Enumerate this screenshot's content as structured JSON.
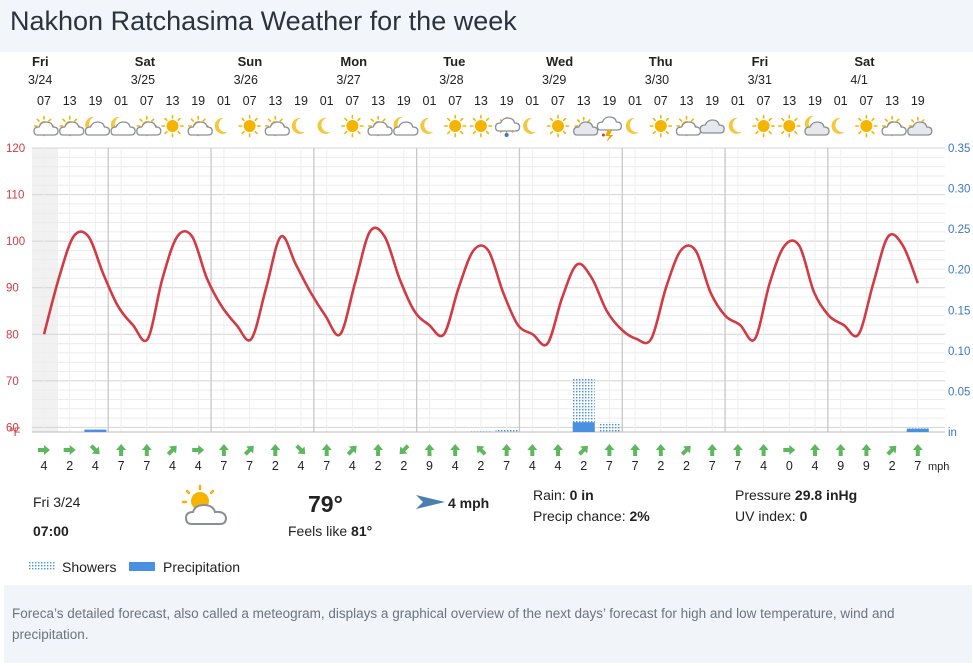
{
  "page": {
    "title": "Nakhon Ratchasima Weather for the week"
  },
  "days": [
    {
      "name": "Fri",
      "date": "3/24"
    },
    {
      "name": "Sat",
      "date": "3/25"
    },
    {
      "name": "Sun",
      "date": "3/26"
    },
    {
      "name": "Mon",
      "date": "3/27"
    },
    {
      "name": "Tue",
      "date": "3/28"
    },
    {
      "name": "Wed",
      "date": "3/29"
    },
    {
      "name": "Thu",
      "date": "3/30"
    },
    {
      "name": "Fri",
      "date": "3/31"
    },
    {
      "name": "Sat",
      "date": "4/1"
    }
  ],
  "hours": [
    "07",
    "13",
    "19",
    "01",
    "07",
    "13",
    "19",
    "01",
    "07",
    "13",
    "19",
    "01",
    "07",
    "13",
    "19",
    "01",
    "07",
    "13",
    "19",
    "01",
    "07",
    "13",
    "19",
    "01",
    "07",
    "13",
    "19",
    "01",
    "07",
    "13",
    "19",
    "01",
    "07",
    "13",
    "19"
  ],
  "icons": [
    "partly-cloudy-sun-icon",
    "partly-cloudy-sun-icon",
    "partly-cloudy-moon-icon",
    "partly-cloudy-moon-icon",
    "partly-cloudy-sun-icon",
    "sun-icon",
    "partly-cloudy-sun-icon",
    "moon-icon",
    "sun-icon",
    "partly-cloudy-sun-icon",
    "moon-icon",
    "moon-icon",
    "sun-icon",
    "partly-cloudy-sun-icon",
    "partly-cloudy-moon-icon",
    "moon-icon",
    "sun-icon",
    "sun-icon",
    "rain-cloud-icon",
    "moon-icon",
    "sun-icon",
    "cloudy-sun-icon",
    "thunderstorm-icon",
    "moon-icon",
    "sun-icon",
    "partly-cloudy-sun-icon",
    "cloudy-icon",
    "moon-icon",
    "sun-icon",
    "sun-icon",
    "cloudy-moon-icon",
    "moon-icon",
    "sun-icon",
    "partly-cloudy-sun-icon",
    "cloudy-sun-icon"
  ],
  "wind": {
    "unit": "mph",
    "speeds": [
      4,
      2,
      4,
      7,
      7,
      4,
      4,
      7,
      7,
      2,
      4,
      7,
      4,
      2,
      2,
      9,
      4,
      2,
      7,
      4,
      4,
      2,
      7,
      7,
      2,
      2,
      7,
      7,
      4,
      0,
      4,
      9,
      9,
      2,
      7
    ],
    "directions": [
      "E",
      "E",
      "SE",
      "N",
      "N",
      "NE",
      "E",
      "N",
      "NE",
      "N",
      "SE",
      "N",
      "NE",
      "N",
      "SW",
      "N",
      "N",
      "NW",
      "N",
      "N",
      "N",
      "NE",
      "N",
      "N",
      "N",
      "NE",
      "N",
      "N",
      "N",
      "E",
      "N",
      "N",
      "N",
      "NE",
      "N"
    ]
  },
  "current": {
    "day_date": "Fri 3/24",
    "time": "07:00",
    "temperature": "79°",
    "feels_like_label": "Feels like",
    "feels_like_value": "81°",
    "wind": "4 mph",
    "rain_label": "Rain:",
    "rain_value": "0 in",
    "precip_chance_label": "Precip chance:",
    "precip_chance_value": "2%",
    "pressure_label": "Pressure",
    "pressure_value": "29.8 inHg",
    "uv_label": "UV index:",
    "uv_value": "0",
    "icon": "partly-cloudy-sun-icon"
  },
  "legend": {
    "showers": "Showers",
    "precipitation": "Precipitation"
  },
  "footer": {
    "text": "Foreca’s detailed forecast, also called a meteogram, displays a graphical overview of the next days’ forecast for high and low temperature, wind and precipitation."
  },
  "colors": {
    "temperature_line": "#d23a44",
    "precipitation": "#4a90e2",
    "showers": "#4a90e2",
    "left_axis": "#d23a44",
    "right_axis": "#3b78c4",
    "wind_arrow": "#5cb85c",
    "sun": "#f5b400"
  },
  "chart_data": {
    "type": "line",
    "title": "",
    "x_hours": [
      "07",
      "13",
      "19",
      "01",
      "07",
      "13",
      "19",
      "01",
      "07",
      "13",
      "19",
      "01",
      "07",
      "13",
      "19",
      "01",
      "07",
      "13",
      "19",
      "01",
      "07",
      "13",
      "19",
      "01",
      "07",
      "13",
      "19",
      "01",
      "07",
      "13",
      "19",
      "01",
      "07",
      "13",
      "19"
    ],
    "y_left": {
      "label": "°F",
      "ticks": [
        60,
        70,
        80,
        90,
        100,
        110,
        120
      ],
      "range": [
        50,
        120
      ]
    },
    "y_right": {
      "label": "in",
      "ticks": [
        0.05,
        0.1,
        0.15,
        0.2,
        0.25,
        0.3,
        0.35
      ],
      "range": [
        0,
        0.35
      ]
    },
    "temperature": [
      80,
      92,
      101,
      101,
      93,
      86,
      82,
      79,
      92,
      101,
      101,
      92,
      86,
      82,
      79,
      90,
      101,
      95,
      89,
      84,
      80,
      91,
      102,
      101,
      92,
      85,
      82,
      80,
      90,
      98,
      98,
      89,
      82,
      80,
      78,
      88,
      95,
      92,
      85,
      81,
      79,
      79,
      90,
      98,
      98,
      89,
      84,
      82,
      79,
      91,
      99,
      99,
      89,
      84,
      82,
      80,
      91,
      101,
      99,
      91
    ],
    "precipitation": [
      0,
      0,
      0.003,
      0,
      0,
      0,
      0,
      0,
      0,
      0,
      0,
      0,
      0,
      0,
      0,
      0,
      0,
      0,
      0,
      0,
      0,
      0.012,
      0,
      0,
      0,
      0,
      0,
      0,
      0,
      0,
      0,
      0,
      0,
      0,
      0.004
    ],
    "showers": [
      0,
      0,
      0,
      0,
      0,
      0,
      0,
      0,
      0,
      0,
      0,
      0,
      0,
      0,
      0,
      0,
      0,
      0.001,
      0.004,
      0,
      0,
      0.067,
      0.012,
      0,
      0,
      0,
      0,
      0,
      0,
      0,
      0,
      0,
      0,
      0,
      0.005
    ],
    "grid": true
  }
}
